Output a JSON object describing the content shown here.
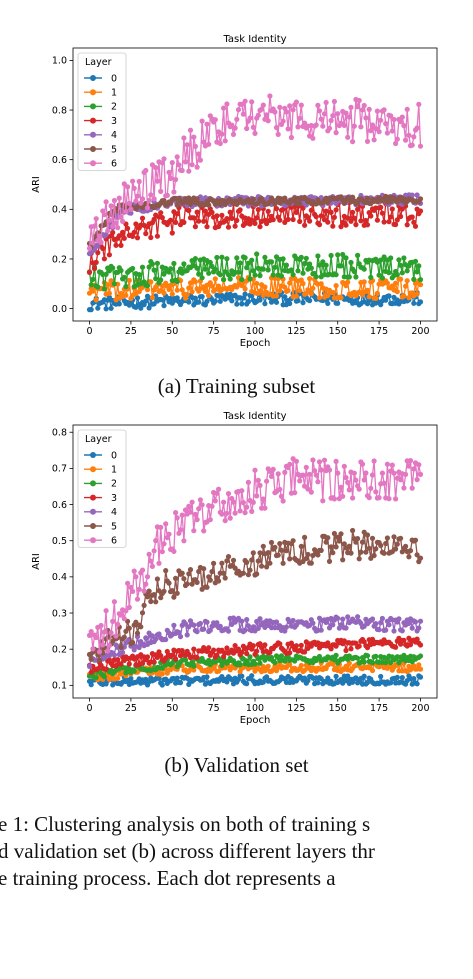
{
  "chart_data": [
    {
      "type": "line",
      "title": "Task Identity",
      "xlabel": "Epoch",
      "ylabel": "ARI",
      "xlim": [
        -10,
        210
      ],
      "ylim": [
        -0.05,
        1.05
      ],
      "xticks": [
        0,
        25,
        50,
        75,
        100,
        125,
        150,
        175,
        200
      ],
      "yticks": [
        0.0,
        0.2,
        0.4,
        0.6,
        0.8,
        1.0
      ],
      "legend_title": "Layer",
      "legend_position": "top-left",
      "grid": false,
      "x_range": [
        0,
        200
      ],
      "series": [
        {
          "name": "0",
          "color": "#1f77b4",
          "mean": [
            [
              0,
              0.02
            ],
            [
              50,
              0.03
            ],
            [
              100,
              0.04
            ],
            [
              150,
              0.04
            ],
            [
              200,
              0.04
            ]
          ],
          "noise": 0.025
        },
        {
          "name": "1",
          "color": "#ff7f0e",
          "mean": [
            [
              0,
              0.07
            ],
            [
              50,
              0.08
            ],
            [
              100,
              0.09
            ],
            [
              150,
              0.08
            ],
            [
              200,
              0.08
            ]
          ],
          "noise": 0.04
        },
        {
          "name": "2",
          "color": "#2ca02c",
          "mean": [
            [
              0,
              0.12
            ],
            [
              50,
              0.15
            ],
            [
              100,
              0.17
            ],
            [
              150,
              0.17
            ],
            [
              200,
              0.15
            ]
          ],
          "noise": 0.05
        },
        {
          "name": "3",
          "color": "#d62728",
          "mean": [
            [
              0,
              0.18
            ],
            [
              20,
              0.3
            ],
            [
              60,
              0.37
            ],
            [
              100,
              0.38
            ],
            [
              200,
              0.38
            ]
          ],
          "noise": 0.05
        },
        {
          "name": "4",
          "color": "#9467bd",
          "mean": [
            [
              0,
              0.22
            ],
            [
              20,
              0.4
            ],
            [
              60,
              0.43
            ],
            [
              200,
              0.44
            ]
          ],
          "noise": 0.02
        },
        {
          "name": "5",
          "color": "#8c564b",
          "mean": [
            [
              0,
              0.25
            ],
            [
              15,
              0.4
            ],
            [
              50,
              0.43
            ],
            [
              200,
              0.44
            ]
          ],
          "noise": 0.015
        },
        {
          "name": "6",
          "color": "#e377c2",
          "mean": [
            [
              0,
              0.28
            ],
            [
              10,
              0.38
            ],
            [
              30,
              0.45
            ],
            [
              50,
              0.55
            ],
            [
              65,
              0.66
            ],
            [
              80,
              0.76
            ],
            [
              100,
              0.78
            ],
            [
              150,
              0.76
            ],
            [
              200,
              0.74
            ]
          ],
          "noise": 0.09
        }
      ]
    },
    {
      "type": "line",
      "title": "Task Identity",
      "xlabel": "Epoch",
      "ylabel": "ARI",
      "xlim": [
        -10,
        210
      ],
      "ylim": [
        0.065,
        0.82
      ],
      "xticks": [
        0,
        25,
        50,
        75,
        100,
        125,
        150,
        175,
        200
      ],
      "yticks": [
        0.1,
        0.2,
        0.3,
        0.4,
        0.5,
        0.6,
        0.7,
        0.8
      ],
      "legend_title": "Layer",
      "legend_position": "top-left",
      "grid": false,
      "x_range": [
        0,
        200
      ],
      "series": [
        {
          "name": "0",
          "color": "#1f77b4",
          "mean": [
            [
              0,
              0.11
            ],
            [
              100,
              0.115
            ],
            [
              200,
              0.115
            ]
          ],
          "noise": 0.012
        },
        {
          "name": "1",
          "color": "#ff7f0e",
          "mean": [
            [
              0,
              0.12
            ],
            [
              50,
              0.145
            ],
            [
              100,
              0.15
            ],
            [
              200,
              0.15
            ]
          ],
          "noise": 0.012
        },
        {
          "name": "2",
          "color": "#2ca02c",
          "mean": [
            [
              0,
              0.13
            ],
            [
              50,
              0.16
            ],
            [
              100,
              0.17
            ],
            [
              200,
              0.175
            ]
          ],
          "noise": 0.012
        },
        {
          "name": "3",
          "color": "#d62728",
          "mean": [
            [
              0,
              0.15
            ],
            [
              50,
              0.185
            ],
            [
              100,
              0.2
            ],
            [
              200,
              0.22
            ]
          ],
          "noise": 0.015
        },
        {
          "name": "4",
          "color": "#9467bd",
          "mean": [
            [
              0,
              0.17
            ],
            [
              30,
              0.22
            ],
            [
              60,
              0.26
            ],
            [
              100,
              0.27
            ],
            [
              200,
              0.27
            ]
          ],
          "noise": 0.02
        },
        {
          "name": "5",
          "color": "#8c564b",
          "mean": [
            [
              0,
              0.19
            ],
            [
              25,
              0.25
            ],
            [
              40,
              0.37
            ],
            [
              80,
              0.42
            ],
            [
              120,
              0.47
            ],
            [
              160,
              0.49
            ],
            [
              200,
              0.48
            ]
          ],
          "noise": 0.04
        },
        {
          "name": "6",
          "color": "#e377c2",
          "mean": [
            [
              0,
              0.2
            ],
            [
              20,
              0.3
            ],
            [
              40,
              0.48
            ],
            [
              60,
              0.56
            ],
            [
              90,
              0.62
            ],
            [
              120,
              0.67
            ],
            [
              150,
              0.66
            ],
            [
              200,
              0.67
            ]
          ],
          "noise": 0.06
        }
      ]
    }
  ],
  "captions": {
    "a": "(a) Training subset",
    "b": "(b) Validation set"
  },
  "figure_caption": {
    "line1": "e 1: Clustering analysis on both of training s",
    "line2": "d validation set (b) across different layers thr",
    "line3": "e training process.  Each dot represents a"
  }
}
